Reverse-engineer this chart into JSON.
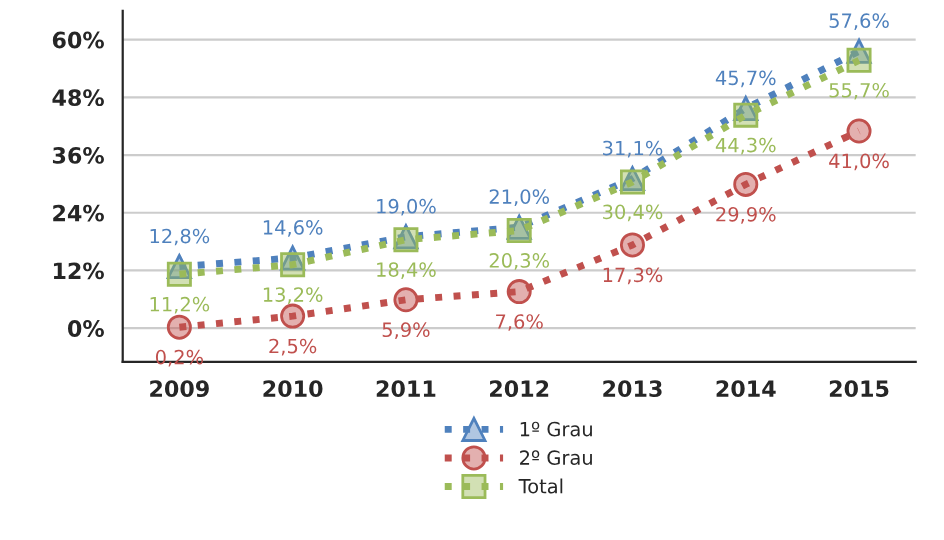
{
  "chart_data": {
    "type": "line",
    "categories": [
      "2009",
      "2010",
      "2011",
      "2012",
      "2013",
      "2014",
      "2015"
    ],
    "ylim": [
      -7,
      66
    ],
    "yticks": [
      {
        "value": 0,
        "label": "0%"
      },
      {
        "value": 12,
        "label": "12%"
      },
      {
        "value": 24,
        "label": "24%"
      },
      {
        "value": 36,
        "label": "36%"
      },
      {
        "value": 48,
        "label": "48%"
      },
      {
        "value": 60,
        "label": "60%"
      }
    ],
    "grid": "y",
    "legend": "bottom",
    "line_style": "dotted",
    "series": [
      {
        "name": "1º Grau",
        "color": "#4f81bd",
        "marker": "triangle",
        "values": [
          12.8,
          14.6,
          19.0,
          21.0,
          31.1,
          45.7,
          57.6
        ],
        "value_labels": [
          "12,8%",
          "14,6%",
          "19,0%",
          "21,0%",
          "31,1%",
          "45,7%",
          "57,6%"
        ]
      },
      {
        "name": "2º Grau",
        "color": "#c0504d",
        "marker": "circle",
        "values": [
          0.2,
          2.5,
          5.9,
          7.6,
          17.3,
          29.9,
          41.0
        ],
        "value_labels": [
          "0,2%",
          "2,5%",
          "5,9%",
          "7,6%",
          "17,3%",
          "29,9%",
          "41,0%"
        ]
      },
      {
        "name": "Total",
        "color": "#9bbb59",
        "marker": "square",
        "values": [
          11.2,
          13.2,
          18.4,
          20.3,
          30.4,
          44.3,
          55.7
        ],
        "value_labels": [
          "11,2%",
          "13,2%",
          "18,4%",
          "20,3%",
          "30,4%",
          "44,3%",
          "55,7%"
        ]
      }
    ]
  }
}
